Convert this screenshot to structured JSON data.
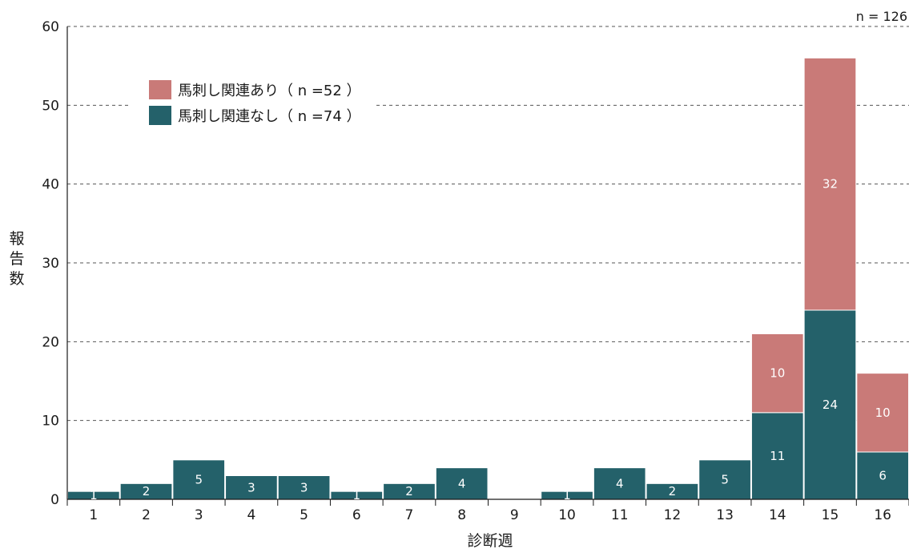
{
  "chart_data": {
    "type": "bar",
    "stacked": true,
    "title": "",
    "xlabel": "診断週",
    "ylabel": "報告数",
    "note": "n = 126",
    "categories": [
      "1",
      "2",
      "3",
      "4",
      "5",
      "6",
      "7",
      "8",
      "9",
      "10",
      "11",
      "12",
      "13",
      "14",
      "15",
      "16"
    ],
    "series": [
      {
        "name": "馬刺し関連なし（ n =74 ）",
        "color": "#24616a",
        "values": [
          1,
          2,
          5,
          3,
          3,
          1,
          2,
          4,
          0,
          1,
          4,
          2,
          5,
          11,
          24,
          6
        ]
      },
      {
        "name": "馬刺し関連あり（ n =52 ）",
        "color": "#c97a78",
        "values": [
          0,
          0,
          0,
          0,
          0,
          0,
          0,
          0,
          0,
          0,
          0,
          0,
          0,
          10,
          32,
          10
        ]
      }
    ],
    "ylim": [
      0,
      60
    ],
    "yticks": [
      0,
      10,
      20,
      30,
      40,
      50,
      60
    ],
    "grid": true,
    "grid_style": "dashed",
    "legend_position": "top-left"
  }
}
